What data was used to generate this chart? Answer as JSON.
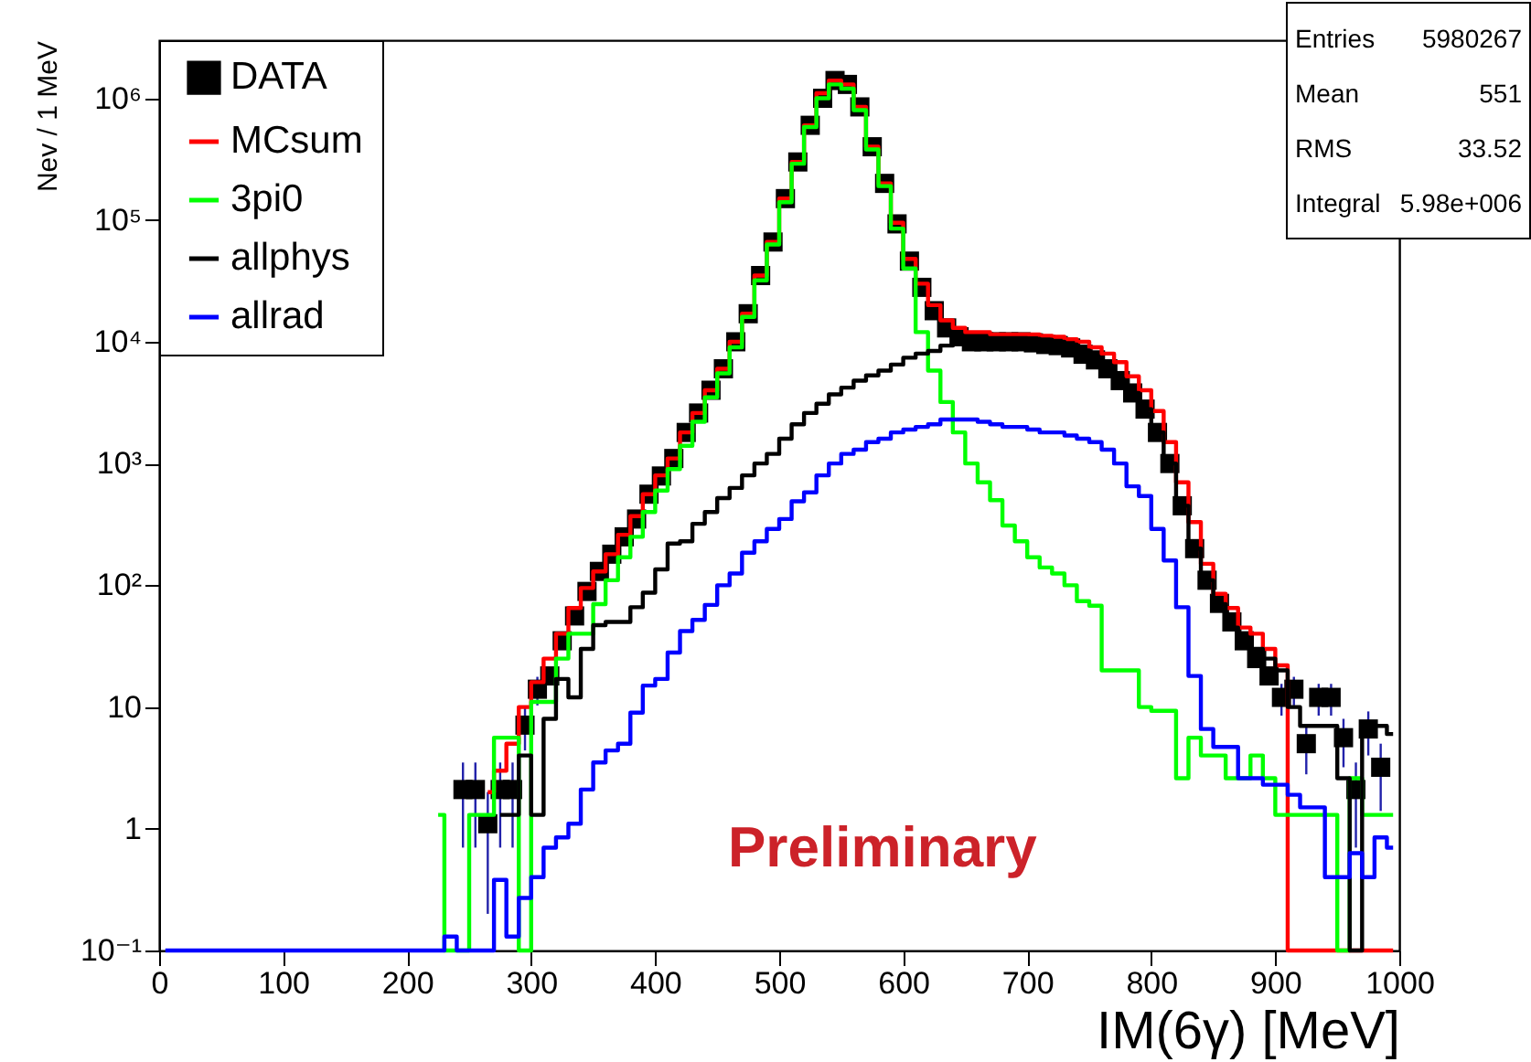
{
  "chart_data": {
    "type": "step",
    "xlabel": "IM(6γ) [MeV]",
    "ylabel": "Nev / 1 MeV",
    "x": [
      5,
      15,
      25,
      35,
      45,
      55,
      65,
      75,
      85,
      95,
      105,
      115,
      125,
      135,
      145,
      155,
      165,
      175,
      185,
      195,
      205,
      215,
      225,
      235,
      245,
      255,
      265,
      275,
      285,
      295,
      305,
      315,
      325,
      335,
      345,
      355,
      365,
      375,
      385,
      395,
      405,
      415,
      425,
      435,
      445,
      455,
      465,
      475,
      485,
      495,
      505,
      515,
      525,
      535,
      545,
      555,
      565,
      575,
      585,
      595,
      605,
      615,
      625,
      635,
      645,
      655,
      665,
      675,
      685,
      695,
      705,
      715,
      725,
      735,
      745,
      755,
      765,
      775,
      785,
      795,
      805,
      815,
      825,
      835,
      845,
      855,
      865,
      875,
      885,
      895,
      905,
      915,
      925,
      935,
      945,
      955,
      965,
      975,
      985,
      995
    ],
    "xlim": [
      0,
      1000
    ],
    "xticks": [
      0,
      100,
      200,
      300,
      400,
      500,
      600,
      700,
      800,
      900,
      1000
    ],
    "ylim": [
      0.1,
      3000000
    ],
    "log": true,
    "yticks": [
      {
        "value": 0.1,
        "label": "10⁻¹"
      },
      1,
      10,
      {
        "value": 100,
        "label": "10²"
      },
      {
        "value": 1000,
        "label": "10³"
      },
      {
        "value": 10000,
        "label": "10⁴"
      },
      {
        "value": 100000,
        "label": "10⁵"
      },
      {
        "value": 1000000,
        "label": "10⁶"
      }
    ],
    "legend": "top left",
    "series": [
      {
        "name": "DATA",
        "type": "scatter",
        "marker": "square",
        "color": "#000000",
        "values": [
          null,
          null,
          null,
          null,
          null,
          null,
          null,
          null,
          null,
          null,
          null,
          null,
          null,
          null,
          null,
          null,
          null,
          null,
          null,
          null,
          null,
          null,
          null,
          null,
          2.1,
          2.1,
          1.1,
          2.1,
          2.1,
          7.1,
          14,
          18,
          35,
          56,
          89,
          130,
          180,
          250,
          350,
          560,
          790,
          1100,
          1800,
          2600,
          4000,
          6000,
          10000,
          17000,
          35000,
          66000,
          150000,
          300000,
          600000,
          1000000,
          1400000,
          1300000,
          850000,
          400000,
          200000,
          93000,
          46000,
          28000,
          18000,
          13000,
          11000,
          10000,
          10000,
          10000,
          10000,
          10000,
          9800,
          9500,
          9300,
          8900,
          7900,
          7100,
          6000,
          4800,
          3800,
          2800,
          1800,
          1000,
          450,
          200,
          110,
          71,
          50,
          35,
          25,
          18,
          12,
          14,
          5,
          12,
          12,
          5.6,
          2.1,
          6.6,
          3.2,
          null
        ],
        "errors": [
          null,
          null,
          null,
          null,
          null,
          null,
          null,
          null,
          null,
          null,
          null,
          null,
          null,
          null,
          null,
          null,
          null,
          null,
          null,
          null,
          null,
          null,
          null,
          null,
          1.4,
          1.4,
          0.9,
          1.4,
          1.4,
          2.7,
          3.7,
          null,
          null,
          null,
          null,
          null,
          null,
          null,
          null,
          null,
          null,
          null,
          null,
          null,
          null,
          null,
          null,
          null,
          null,
          null,
          null,
          null,
          null,
          null,
          null,
          null,
          null,
          null,
          null,
          null,
          null,
          null,
          null,
          null,
          null,
          null,
          null,
          null,
          null,
          null,
          null,
          null,
          null,
          null,
          null,
          null,
          null,
          null,
          null,
          null,
          null,
          null,
          null,
          null,
          null,
          null,
          null,
          null,
          null,
          null,
          3.5,
          3.7,
          2.2,
          3.5,
          3.5,
          2.4,
          1.4,
          2.6,
          1.8,
          null
        ]
      },
      {
        "name": "MCsum",
        "color": "#ff0000",
        "values": [
          null,
          null,
          null,
          null,
          null,
          null,
          null,
          null,
          null,
          null,
          null,
          null,
          null,
          null,
          null,
          null,
          null,
          null,
          null,
          null,
          null,
          null,
          null,
          null,
          null,
          null,
          2,
          3,
          5,
          10,
          16,
          25,
          40,
          65,
          95,
          130,
          180,
          260,
          370,
          560,
          800,
          1100,
          1800,
          2600,
          4000,
          6000,
          10000,
          17000,
          35000,
          66000,
          150000,
          300000,
          600000,
          1100000,
          1400000,
          1300000,
          850000,
          400000,
          200000,
          95000,
          48000,
          30000,
          20000,
          15000,
          13000,
          12000,
          12000,
          11500,
          11500,
          11500,
          11500,
          11200,
          11000,
          10500,
          10000,
          9000,
          8000,
          6800,
          5200,
          4000,
          2700,
          1500,
          700,
          330,
          150,
          85,
          65,
          45,
          40,
          30,
          22,
          0.1,
          0.1,
          0.1,
          0.1,
          null,
          0.1,
          0.1,
          0.1,
          0.1
        ]
      },
      {
        "name": "3pi0",
        "color": "#00ff00",
        "values": [
          null,
          null,
          null,
          null,
          null,
          null,
          null,
          null,
          null,
          null,
          null,
          null,
          null,
          null,
          null,
          null,
          null,
          null,
          null,
          null,
          null,
          null,
          1.3,
          0.1,
          0.1,
          1.3,
          1.3,
          5.6,
          5.6,
          0.1,
          11,
          11,
          25,
          40,
          40,
          70,
          110,
          170,
          250,
          400,
          600,
          900,
          1400,
          2200,
          3500,
          5500,
          9000,
          16000,
          32000,
          63000,
          140000,
          290000,
          580000,
          1000000,
          1300000,
          1200000,
          800000,
          380000,
          190000,
          85000,
          40000,
          12000,
          5800,
          3200,
          1800,
          1000,
          700,
          500,
          310,
          230,
          170,
          140,
          125,
          100,
          74,
          68,
          20,
          20,
          20,
          10,
          9.3,
          9.3,
          2.6,
          5.6,
          4,
          4,
          2.6,
          2.6,
          4,
          2.6,
          1.3,
          1.3,
          1.3,
          1.3,
          1.3,
          0.1,
          2.6,
          1.3,
          1.3,
          1.3
        ]
      },
      {
        "name": "allphys",
        "color": "#000000",
        "values": [
          null,
          null,
          null,
          null,
          null,
          null,
          null,
          null,
          null,
          null,
          null,
          null,
          null,
          null,
          null,
          null,
          null,
          null,
          null,
          null,
          null,
          null,
          null,
          null,
          null,
          null,
          null,
          1.3,
          1.3,
          4,
          1.3,
          8,
          17,
          12,
          30,
          47,
          50,
          50,
          66,
          87,
          135,
          220,
          230,
          320,
          400,
          520,
          630,
          800,
          1000,
          1200,
          1600,
          2100,
          2600,
          3100,
          3700,
          4200,
          4800,
          5300,
          5800,
          6500,
          7400,
          8000,
          8400,
          9300,
          10000,
          10500,
          10700,
          10700,
          10700,
          10700,
          10600,
          10400,
          10000,
          9500,
          8500,
          7000,
          6000,
          4800,
          3800,
          2800,
          1800,
          1000,
          450,
          200,
          110,
          70,
          45,
          35,
          30,
          25,
          20,
          10,
          7,
          7,
          7,
          2.6,
          0.1,
          7,
          7,
          6
        ]
      },
      {
        "name": "allrad",
        "color": "#0000ff",
        "values": [
          0.1,
          0.1,
          0.1,
          0.1,
          0.1,
          0.1,
          0.1,
          0.1,
          0.1,
          0.1,
          0.1,
          0.1,
          0.1,
          0.1,
          0.1,
          0.1,
          0.1,
          0.1,
          0.1,
          0.1,
          0.1,
          0.1,
          0.1,
          0.13,
          0.1,
          0.1,
          0.1,
          0.38,
          0.13,
          0.27,
          0.4,
          0.7,
          0.85,
          1.1,
          2.1,
          3.5,
          4.4,
          5,
          9,
          15,
          17,
          28,
          42,
          52,
          69,
          100,
          125,
          185,
          230,
          290,
          350,
          490,
          580,
          800,
          1000,
          1200,
          1300,
          1500,
          1600,
          1800,
          1900,
          2000,
          2100,
          2300,
          2300,
          2300,
          2200,
          2100,
          2000,
          2000,
          1900,
          1800,
          1800,
          1700,
          1600,
          1500,
          1300,
          1000,
          650,
          540,
          290,
          160,
          66,
          18,
          6.6,
          4.7,
          4.7,
          2.6,
          2.6,
          2.3,
          2.3,
          1.9,
          1.5,
          1.5,
          0.4,
          0.4,
          0.63,
          0.4,
          0.85,
          0.7
        ]
      }
    ],
    "annotations": [
      "Entries 5980267",
      "Mean 551",
      "RMS 33.52",
      "Integral 5.98e+006",
      "Preliminary"
    ]
  }
}
